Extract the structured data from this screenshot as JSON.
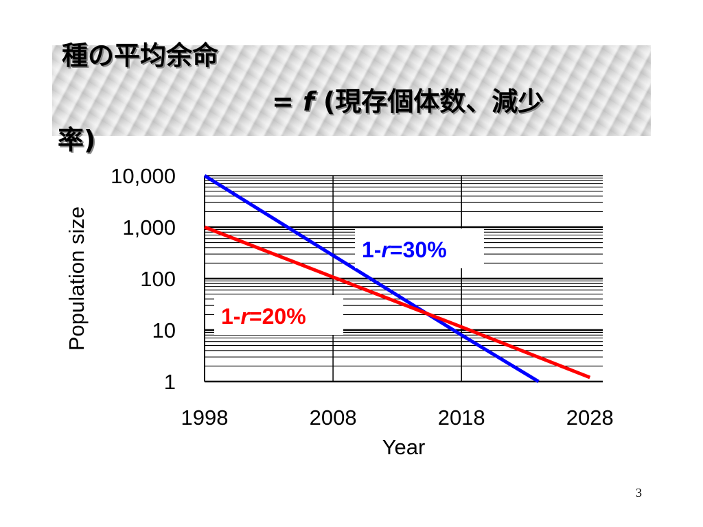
{
  "slide": {
    "title_line1": "種の平均余命",
    "title_line2_pre": "= ",
    "title_line2_f": "f",
    "title_line2_post": " (現存個体数、減少",
    "title_line3": "率)",
    "page_number": "3"
  },
  "chart_data": {
    "type": "line",
    "xlabel": "Year",
    "ylabel": "Population size",
    "x_ticks": [
      "1998",
      "2008",
      "2018",
      "2028"
    ],
    "y_ticks": [
      "10,000",
      "1,000",
      "100",
      "10",
      "1"
    ],
    "xlim": [
      1998,
      2029
    ],
    "ylim": [
      1,
      10000
    ],
    "y_scale": "log",
    "grid": true,
    "series": [
      {
        "name": "1-r=30%",
        "label_pre": "1-",
        "label_italic": "r",
        "label_post": "=30%",
        "color": "#0000ff",
        "x": [
          1998,
          2008,
          2018,
          2024
        ],
        "y": [
          10000,
          282,
          8,
          1
        ]
      },
      {
        "name": "1-r=20%",
        "label_pre": "1-",
        "label_italic": "r",
        "label_post": "=20%",
        "color": "#ff0000",
        "x": [
          1998,
          2008,
          2018,
          2028
        ],
        "y": [
          1000,
          107,
          11.5,
          1.2
        ]
      }
    ]
  }
}
